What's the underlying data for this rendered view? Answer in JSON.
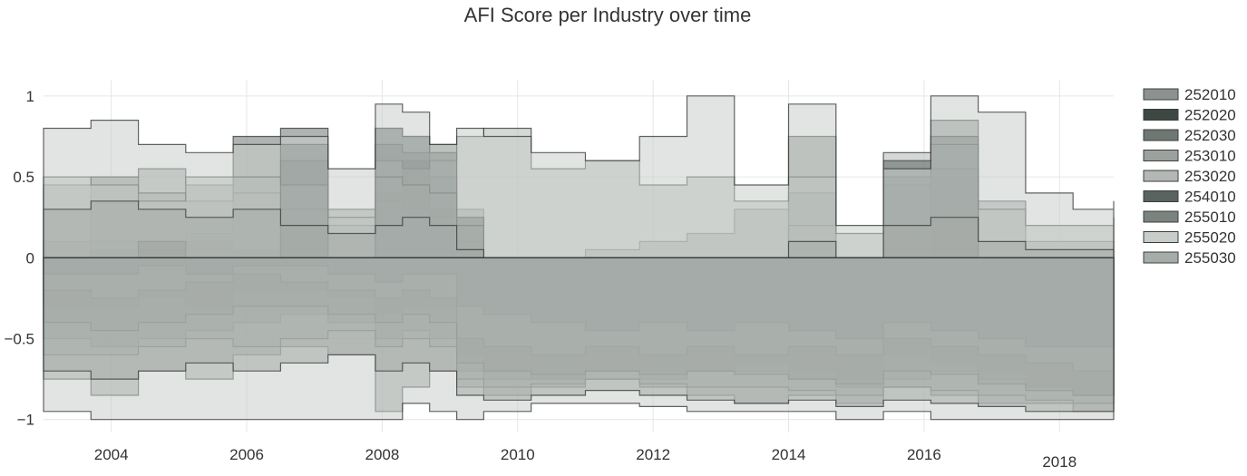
{
  "chart_data": {
    "type": "area",
    "title": "AFI Score per Industry over time",
    "xlabel": "",
    "ylabel": "",
    "xlim": [
      2003.0,
      2018.8
    ],
    "ylim": [
      -1.08,
      1.1
    ],
    "x_ticks": [
      2004,
      2006,
      2008,
      2010,
      2012,
      2014,
      2016,
      2018
    ],
    "x_tick_labels": [
      "2004",
      "2006",
      "2008",
      "2010",
      "2012",
      "2014",
      "2016",
      "2018"
    ],
    "y_ticks": [
      1,
      0.5,
      0,
      -0.5,
      -1
    ],
    "y_tick_labels": [
      "1",
      "0.5",
      "0",
      "−0.5",
      "−1"
    ],
    "grid": true,
    "legend_position": "right",
    "x": [
      2003.0,
      2003.7,
      2004.4,
      2005.1,
      2005.8,
      2006.5,
      2007.2,
      2007.9,
      2008.3,
      2008.7,
      2009.1,
      2009.5,
      2010.2,
      2011.0,
      2011.8,
      2012.5,
      2013.2,
      2014.0,
      2014.7,
      2015.4,
      2016.1,
      2016.8,
      2017.5,
      2018.2,
      2018.8
    ],
    "series": [
      {
        "name": "252010",
        "color": "#8e928f",
        "upper": [
          0.1,
          0.5,
          0.55,
          0.45,
          0.5,
          0.6,
          0.3,
          0.8,
          0.75,
          0.5,
          0.0,
          0.0,
          0.0,
          0.05,
          0.1,
          0.15,
          0.3,
          0.4,
          0.0,
          0.45,
          0.5,
          0.35,
          0.1,
          0.1,
          0.1
        ],
        "lower": [
          -0.75,
          -0.85,
          -0.7,
          -0.75,
          -0.6,
          -0.55,
          -0.6,
          -0.95,
          -0.8,
          -0.7,
          -0.8,
          -0.85,
          -0.8,
          -0.75,
          -0.8,
          -0.85,
          -0.9,
          -0.85,
          -0.9,
          -0.8,
          -0.85,
          -0.9,
          -0.9,
          -0.95,
          -0.95
        ]
      },
      {
        "name": "252020",
        "color": "#3d4843",
        "upper": [
          0.0,
          0.05,
          0.0,
          0.1,
          0.05,
          0.15,
          0.0,
          0.4,
          0.6,
          0.3,
          0.0,
          0.0,
          0.0,
          0.0,
          0.0,
          0.0,
          0.0,
          0.0,
          0.0,
          0.0,
          0.0,
          0.0,
          0.0,
          0.0,
          0.0
        ],
        "lower": [
          -0.3,
          -0.3,
          -0.25,
          -0.3,
          -0.2,
          -0.2,
          -0.25,
          -0.35,
          -0.3,
          -0.3,
          -0.6,
          -0.7,
          -0.75,
          -0.7,
          -0.7,
          -0.7,
          -0.65,
          -0.7,
          -0.75,
          -0.6,
          -0.65,
          -0.7,
          -0.8,
          -0.85,
          -0.85
        ]
      },
      {
        "name": "252030",
        "color": "#6e7772",
        "upper": [
          0.0,
          0.1,
          0.05,
          0.15,
          0.75,
          0.8,
          0.0,
          0.7,
          0.65,
          0.7,
          0.3,
          0.0,
          0.0,
          0.0,
          0.0,
          0.0,
          0.0,
          0.75,
          0.0,
          0.0,
          0.85,
          0.0,
          0.0,
          0.0,
          0.0
        ],
        "lower": [
          -0.5,
          -0.55,
          -0.5,
          -0.45,
          -0.4,
          -0.35,
          -0.4,
          -0.5,
          -0.45,
          -0.5,
          -0.7,
          -0.75,
          -0.7,
          -0.7,
          -0.75,
          -0.7,
          -0.7,
          -0.75,
          -0.8,
          -0.75,
          -0.7,
          -0.75,
          -0.8,
          -0.85,
          -0.8
        ]
      },
      {
        "name": "253010",
        "color": "#9ba19d",
        "upper": [
          0.45,
          0.5,
          0.4,
          0.35,
          0.4,
          0.3,
          0.2,
          0.35,
          0.3,
          0.25,
          0.1,
          0.0,
          0.0,
          0.0,
          0.0,
          0.0,
          0.0,
          0.2,
          0.0,
          0.5,
          0.55,
          0.0,
          0.0,
          0.0,
          0.0
        ],
        "lower": [
          -0.6,
          -0.6,
          -0.55,
          -0.5,
          -0.55,
          -0.5,
          -0.45,
          -0.55,
          -0.5,
          -0.55,
          -0.75,
          -0.8,
          -0.78,
          -0.75,
          -0.78,
          -0.8,
          -0.8,
          -0.82,
          -0.85,
          -0.8,
          -0.82,
          -0.85,
          -0.88,
          -0.9,
          -0.88
        ]
      },
      {
        "name": "253020",
        "color": "#b3b8b5",
        "upper": [
          0.5,
          0.45,
          0.35,
          0.5,
          0.5,
          0.45,
          0.25,
          0.6,
          0.55,
          0.6,
          0.75,
          0.8,
          0.55,
          0.6,
          0.45,
          0.5,
          0.35,
          0.5,
          0.15,
          0.65,
          0.7,
          0.3,
          0.2,
          0.2,
          0.25
        ],
        "lower": [
          -0.2,
          -0.25,
          -0.2,
          -0.15,
          -0.1,
          -0.15,
          -0.2,
          -0.25,
          -0.2,
          -0.25,
          -0.5,
          -0.55,
          -0.6,
          -0.55,
          -0.6,
          -0.55,
          -0.6,
          -0.55,
          -0.6,
          -0.5,
          -0.55,
          -0.6,
          -0.65,
          -0.7,
          -0.65
        ]
      },
      {
        "name": "254010",
        "color": "#596360",
        "upper": [
          0.0,
          0.0,
          0.1,
          0.0,
          0.0,
          0.7,
          0.0,
          0.8,
          0.75,
          0.65,
          0.25,
          0.0,
          0.0,
          0.0,
          0.0,
          0.0,
          0.0,
          0.0,
          0.0,
          0.6,
          0.75,
          0.0,
          0.0,
          0.0,
          0.0
        ],
        "lower": [
          -0.1,
          -0.1,
          -0.05,
          -0.1,
          -0.05,
          -0.05,
          -0.1,
          -0.15,
          -0.1,
          -0.1,
          -0.3,
          -0.35,
          -0.4,
          -0.45,
          -0.4,
          -0.45,
          -0.4,
          -0.45,
          -0.5,
          -0.4,
          -0.45,
          -0.5,
          -0.55,
          -0.55,
          -0.5
        ]
      },
      {
        "name": "255010",
        "color": "#7b837f",
        "upper": [
          0.0,
          0.0,
          0.0,
          0.0,
          0.0,
          0.0,
          0.0,
          0.5,
          0.45,
          0.4,
          0.2,
          0.0,
          0.0,
          0.0,
          0.0,
          0.0,
          0.0,
          0.0,
          0.0,
          0.0,
          0.0,
          0.0,
          0.0,
          0.0,
          0.0
        ],
        "lower": [
          -0.4,
          -0.45,
          -0.4,
          -0.35,
          -0.3,
          -0.3,
          -0.35,
          -0.4,
          -0.35,
          -0.4,
          -0.65,
          -0.7,
          -0.72,
          -0.7,
          -0.72,
          -0.7,
          -0.72,
          -0.75,
          -0.78,
          -0.7,
          -0.72,
          -0.78,
          -0.82,
          -0.85,
          -0.82
        ]
      },
      {
        "name": "255020",
        "color": "#c9cdca",
        "upper": [
          0.8,
          0.85,
          0.7,
          0.65,
          0.7,
          0.75,
          0.55,
          0.95,
          0.9,
          0.7,
          0.8,
          0.75,
          0.65,
          0.6,
          0.75,
          1.0,
          0.45,
          0.95,
          0.2,
          0.55,
          1.0,
          0.9,
          0.4,
          0.3,
          0.35
        ],
        "lower": [
          -0.95,
          -1.0,
          -1.0,
          -1.0,
          -1.0,
          -1.0,
          -1.0,
          -1.0,
          -0.9,
          -0.95,
          -1.0,
          -0.95,
          -0.9,
          -0.9,
          -0.92,
          -0.95,
          -0.95,
          -0.95,
          -1.0,
          -0.95,
          -1.0,
          -1.0,
          -1.0,
          -1.0,
          -1.0
        ]
      },
      {
        "name": "255030",
        "color": "#a6aca8",
        "upper": [
          0.3,
          0.35,
          0.3,
          0.25,
          0.3,
          0.2,
          0.15,
          0.2,
          0.25,
          0.2,
          0.05,
          0.0,
          0.0,
          0.0,
          0.0,
          0.0,
          0.0,
          0.1,
          0.0,
          0.2,
          0.25,
          0.1,
          0.05,
          0.05,
          0.05
        ],
        "lower": [
          -0.7,
          -0.75,
          -0.7,
          -0.65,
          -0.7,
          -0.65,
          -0.6,
          -0.7,
          -0.65,
          -0.7,
          -0.85,
          -0.88,
          -0.85,
          -0.82,
          -0.85,
          -0.88,
          -0.9,
          -0.88,
          -0.92,
          -0.88,
          -0.9,
          -0.92,
          -0.95,
          -0.95,
          -0.95
        ]
      }
    ]
  }
}
